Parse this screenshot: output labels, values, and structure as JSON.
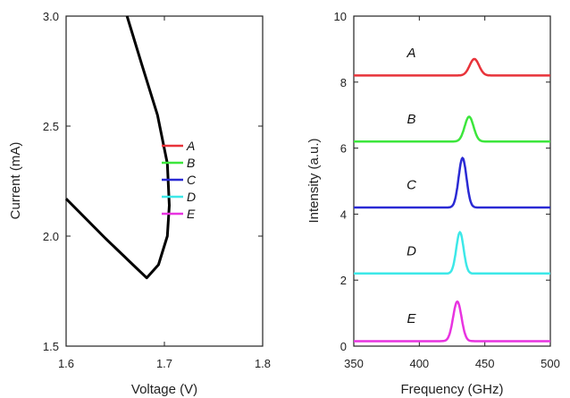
{
  "chart_data": [
    {
      "type": "line",
      "xlabel": "Voltage (V)",
      "ylabel": "Current (mA)",
      "xlim": [
        1.6,
        1.8
      ],
      "ylim": [
        1.5,
        3.0
      ],
      "x_ticks": [
        "1.6",
        "1.7",
        "1.8"
      ],
      "y_ticks": [
        "1.5",
        "2.0",
        "2.5",
        "3.0"
      ],
      "series": [
        {
          "color": "#000000",
          "points": [
            [
              1.6,
              2.17
            ],
            [
              1.64,
              1.99
            ],
            [
              1.668,
              1.87
            ],
            [
              1.682,
              1.81
            ],
            [
              1.694,
              1.87
            ],
            [
              1.703,
              2.0
            ],
            [
              1.705,
              2.14
            ],
            [
              1.703,
              2.33
            ],
            [
              1.693,
              2.55
            ],
            [
              1.677,
              2.78
            ],
            [
              1.662,
              3.0
            ]
          ]
        }
      ],
      "legend": {
        "placement": "center",
        "entries": [
          {
            "label": "A",
            "color": "#e8333a"
          },
          {
            "label": "B",
            "color": "#3ce63c"
          },
          {
            "label": "C",
            "color": "#2a2ad4"
          },
          {
            "label": "D",
            "color": "#3de8e8"
          },
          {
            "label": "E",
            "color": "#e833e0"
          }
        ]
      }
    },
    {
      "type": "line",
      "xlabel": "Frequency (GHz)",
      "ylabel": "Intensity (a.u.)",
      "xlim": [
        350,
        500
      ],
      "ylim": [
        0,
        10
      ],
      "x_ticks": [
        "350",
        "400",
        "450",
        "500"
      ],
      "y_ticks": [
        "0",
        "2",
        "4",
        "6",
        "8",
        "10"
      ],
      "series": [
        {
          "name": "A",
          "color": "#e8333a",
          "baseline": 8.2,
          "peak_x": 442,
          "peak_height": 0.5,
          "sigma": 3.6
        },
        {
          "name": "B",
          "color": "#3ce63c",
          "baseline": 6.2,
          "peak_x": 438,
          "peak_height": 0.75,
          "sigma": 3.4
        },
        {
          "name": "C",
          "color": "#2a2ad4",
          "baseline": 4.2,
          "peak_x": 433,
          "peak_height": 1.5,
          "sigma": 3.0
        },
        {
          "name": "D",
          "color": "#3de8e8",
          "baseline": 2.2,
          "peak_x": 431,
          "peak_height": 1.25,
          "sigma": 2.8
        },
        {
          "name": "E",
          "color": "#e833e0",
          "baseline": 0.15,
          "peak_x": 429,
          "peak_height": 1.2,
          "sigma": 3.2
        }
      ],
      "curve_labels": [
        {
          "label": "A",
          "x": 394,
          "y": 8.75
        },
        {
          "label": "B",
          "x": 394,
          "y": 6.75
        },
        {
          "label": "C",
          "x": 394,
          "y": 4.75
        },
        {
          "label": "D",
          "x": 394,
          "y": 2.75
        },
        {
          "label": "E",
          "x": 394,
          "y": 0.7
        }
      ]
    }
  ]
}
